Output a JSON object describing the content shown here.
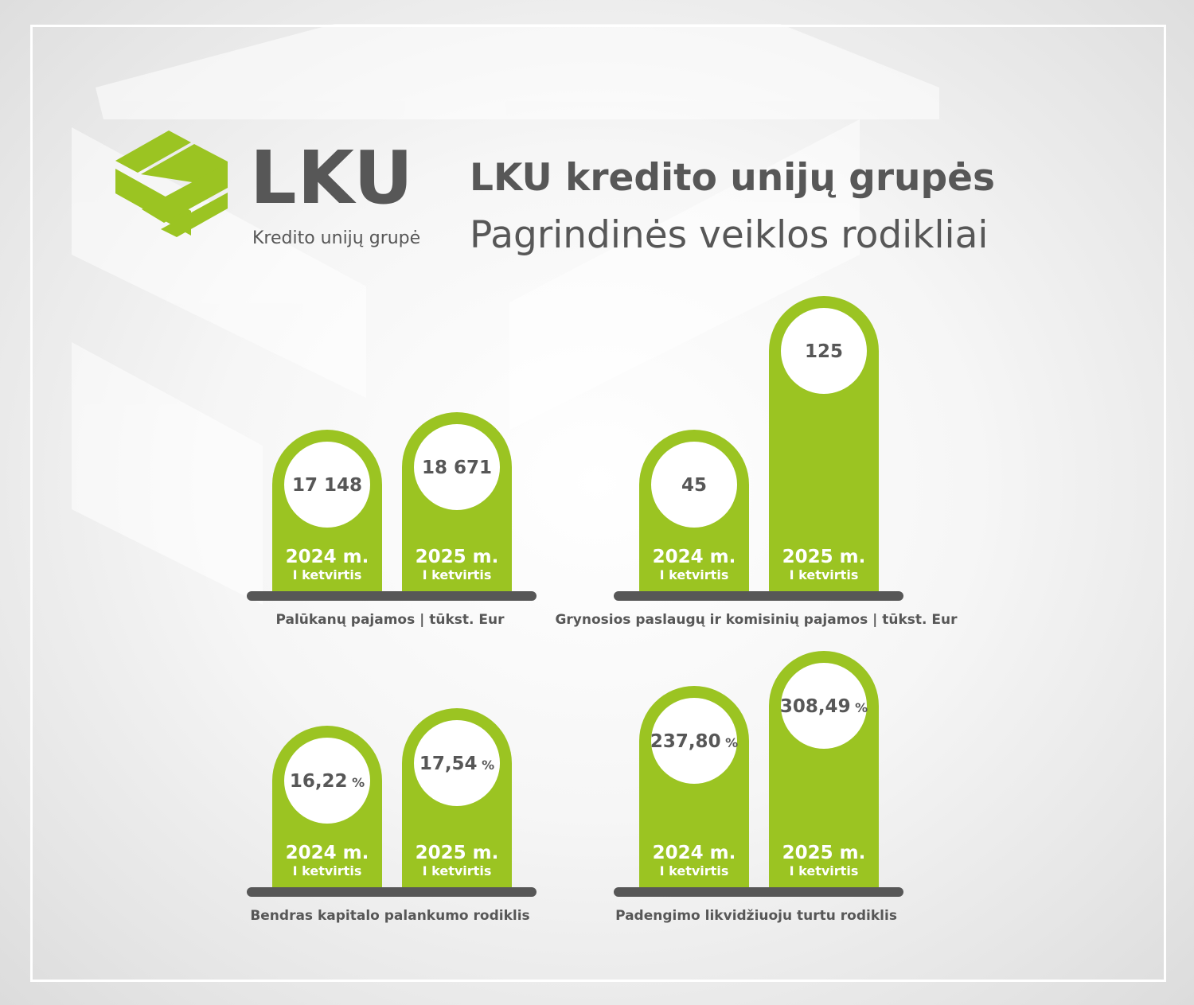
{
  "logo": {
    "word": "LKU",
    "subtitle": "Kredito unijų grupė"
  },
  "title": {
    "line1": "LKU kredito unijų grupės",
    "line2": "Pagrindinės veiklos rodikliai"
  },
  "colors": {
    "accent": "#9bc422",
    "text": "#575757",
    "base": "#575757",
    "circle": "#ffffff"
  },
  "chart_data": [
    {
      "type": "bar",
      "title": "Palūkanų  pajamos | tūkst. Eur",
      "categories": [
        "2024 m.",
        "2025 m."
      ],
      "category_sublabels": [
        "I ketvirtis",
        "I ketvirtis"
      ],
      "values": [
        17148,
        18671
      ],
      "value_labels": [
        "17 148",
        "18 671"
      ],
      "unit_suffix": ""
    },
    {
      "type": "bar",
      "title": "Grynosios paslaugų ir komisinių pajamos | tūkst. Eur",
      "categories": [
        "2024 m.",
        "2025 m."
      ],
      "category_sublabels": [
        "I ketvirtis",
        "I ketvirtis"
      ],
      "values": [
        45,
        125
      ],
      "value_labels": [
        "45",
        "125"
      ],
      "unit_suffix": ""
    },
    {
      "type": "bar",
      "title": "Bendras kapitalo palankumo rodiklis",
      "categories": [
        "2024 m.",
        "2025 m."
      ],
      "category_sublabels": [
        "I ketvirtis",
        "I ketvirtis"
      ],
      "values": [
        16.22,
        17.54
      ],
      "value_labels": [
        "16,22",
        "17,54"
      ],
      "unit_suffix": "%"
    },
    {
      "type": "bar",
      "title": "Padengimo likvidžiuoju turtu rodiklis",
      "categories": [
        "2024 m.",
        "2025 m."
      ],
      "category_sublabels": [
        "I ketvirtis",
        "I ketvirtis"
      ],
      "values": [
        237.8,
        308.49
      ],
      "value_labels": [
        "237,80",
        "308,49"
      ],
      "unit_suffix": "%"
    }
  ]
}
